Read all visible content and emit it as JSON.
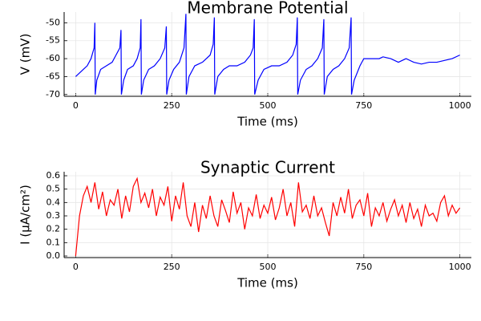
{
  "chart_data": [
    {
      "type": "line",
      "title": "Membrane Potential",
      "xlabel": "Time (ms)",
      "ylabel": "V (mV)",
      "color": "#0000ff",
      "grid": true,
      "xlim": [
        -30,
        1030
      ],
      "xticks": [
        0,
        250,
        500,
        750,
        1000
      ],
      "ylim": [
        -70.5,
        -47
      ],
      "yticks": [
        -70,
        -65,
        -60,
        -55,
        -50
      ],
      "x": [
        0,
        10,
        20,
        30,
        40,
        48,
        50,
        51,
        55,
        65,
        80,
        95,
        105,
        115,
        118,
        119,
        125,
        135,
        150,
        160,
        168,
        170,
        171,
        177,
        190,
        205,
        220,
        232,
        236,
        237,
        243,
        255,
        270,
        282,
        287,
        288,
        295,
        310,
        330,
        350,
        358,
        361,
        362,
        370,
        385,
        400,
        420,
        440,
        455,
        462,
        465,
        466,
        475,
        490,
        510,
        530,
        550,
        565,
        574,
        577,
        578,
        585,
        600,
        615,
        630,
        642,
        646,
        647,
        655,
        670,
        685,
        700,
        712,
        717,
        718,
        725,
        740,
        750,
        770,
        790,
        800,
        820,
        840,
        860,
        880,
        900,
        920,
        940,
        960,
        980,
        1000
      ],
      "values": [
        -65,
        -64,
        -63,
        -62,
        -60,
        -57,
        -50,
        -70,
        -66,
        -63,
        -62,
        -61,
        -59,
        -57,
        -52,
        -70,
        -66,
        -63,
        -62,
        -60,
        -57,
        -49,
        -70,
        -66,
        -63,
        -62,
        -60,
        -57,
        -51,
        -70,
        -66,
        -63,
        -61,
        -57,
        -47.5,
        -70,
        -65,
        -62,
        -61,
        -59,
        -56,
        -48.5,
        -70,
        -65,
        -63,
        -62,
        -62,
        -61,
        -59,
        -57,
        -49,
        -70,
        -66,
        -63,
        -62,
        -62,
        -61,
        -59,
        -56,
        -48.5,
        -70,
        -66,
        -63,
        -62,
        -60,
        -57,
        -49,
        -70,
        -65,
        -63,
        -62,
        -60,
        -57,
        -48.5,
        -70,
        -66,
        -62,
        -60,
        -60,
        -60,
        -59.5,
        -60,
        -61,
        -60,
        -61,
        -61.5,
        -61,
        -61,
        -60.5,
        -60,
        -59
      ]
    },
    {
      "type": "line",
      "title": "Synaptic Current",
      "xlabel": "Time (ms)",
      "ylabel": "I (μA/cm²)",
      "color": "#ff0000",
      "grid": true,
      "xlim": [
        -30,
        1030
      ],
      "xticks": [
        0,
        250,
        500,
        750,
        1000
      ],
      "ylim": [
        -0.012,
        0.63
      ],
      "yticks": [
        {
          "value": 0,
          "label": "0.0"
        },
        0.1,
        0.2,
        0.3,
        0.4,
        0.5,
        0.6
      ],
      "x": [
        0,
        10,
        20,
        30,
        40,
        50,
        60,
        70,
        80,
        90,
        100,
        110,
        120,
        130,
        140,
        150,
        160,
        170,
        180,
        190,
        200,
        210,
        220,
        230,
        240,
        250,
        260,
        270,
        280,
        290,
        300,
        310,
        320,
        330,
        340,
        350,
        360,
        370,
        380,
        390,
        400,
        410,
        420,
        430,
        440,
        450,
        460,
        470,
        480,
        490,
        500,
        510,
        520,
        530,
        540,
        550,
        560,
        570,
        580,
        590,
        600,
        610,
        620,
        630,
        640,
        650,
        660,
        670,
        680,
        690,
        700,
        710,
        720,
        730,
        740,
        750,
        760,
        770,
        780,
        790,
        800,
        810,
        820,
        830,
        840,
        850,
        860,
        870,
        880,
        890,
        900,
        910,
        920,
        930,
        940,
        950,
        960,
        970,
        980,
        990,
        1000
      ],
      "values": [
        0,
        0.3,
        0.45,
        0.52,
        0.4,
        0.55,
        0.35,
        0.48,
        0.3,
        0.42,
        0.38,
        0.5,
        0.28,
        0.45,
        0.33,
        0.52,
        0.58,
        0.4,
        0.47,
        0.36,
        0.5,
        0.3,
        0.44,
        0.38,
        0.52,
        0.26,
        0.45,
        0.35,
        0.55,
        0.3,
        0.22,
        0.4,
        0.18,
        0.38,
        0.28,
        0.45,
        0.3,
        0.22,
        0.42,
        0.34,
        0.25,
        0.48,
        0.32,
        0.4,
        0.2,
        0.36,
        0.3,
        0.46,
        0.28,
        0.38,
        0.32,
        0.44,
        0.27,
        0.36,
        0.5,
        0.3,
        0.4,
        0.22,
        0.55,
        0.33,
        0.38,
        0.28,
        0.45,
        0.3,
        0.36,
        0.25,
        0.15,
        0.4,
        0.3,
        0.44,
        0.32,
        0.5,
        0.28,
        0.38,
        0.42,
        0.3,
        0.47,
        0.22,
        0.36,
        0.3,
        0.4,
        0.26,
        0.35,
        0.42,
        0.3,
        0.38,
        0.25,
        0.4,
        0.28,
        0.35,
        0.22,
        0.38,
        0.3,
        0.32,
        0.26,
        0.4,
        0.45,
        0.3,
        0.38,
        0.32,
        0.36
      ]
    }
  ]
}
